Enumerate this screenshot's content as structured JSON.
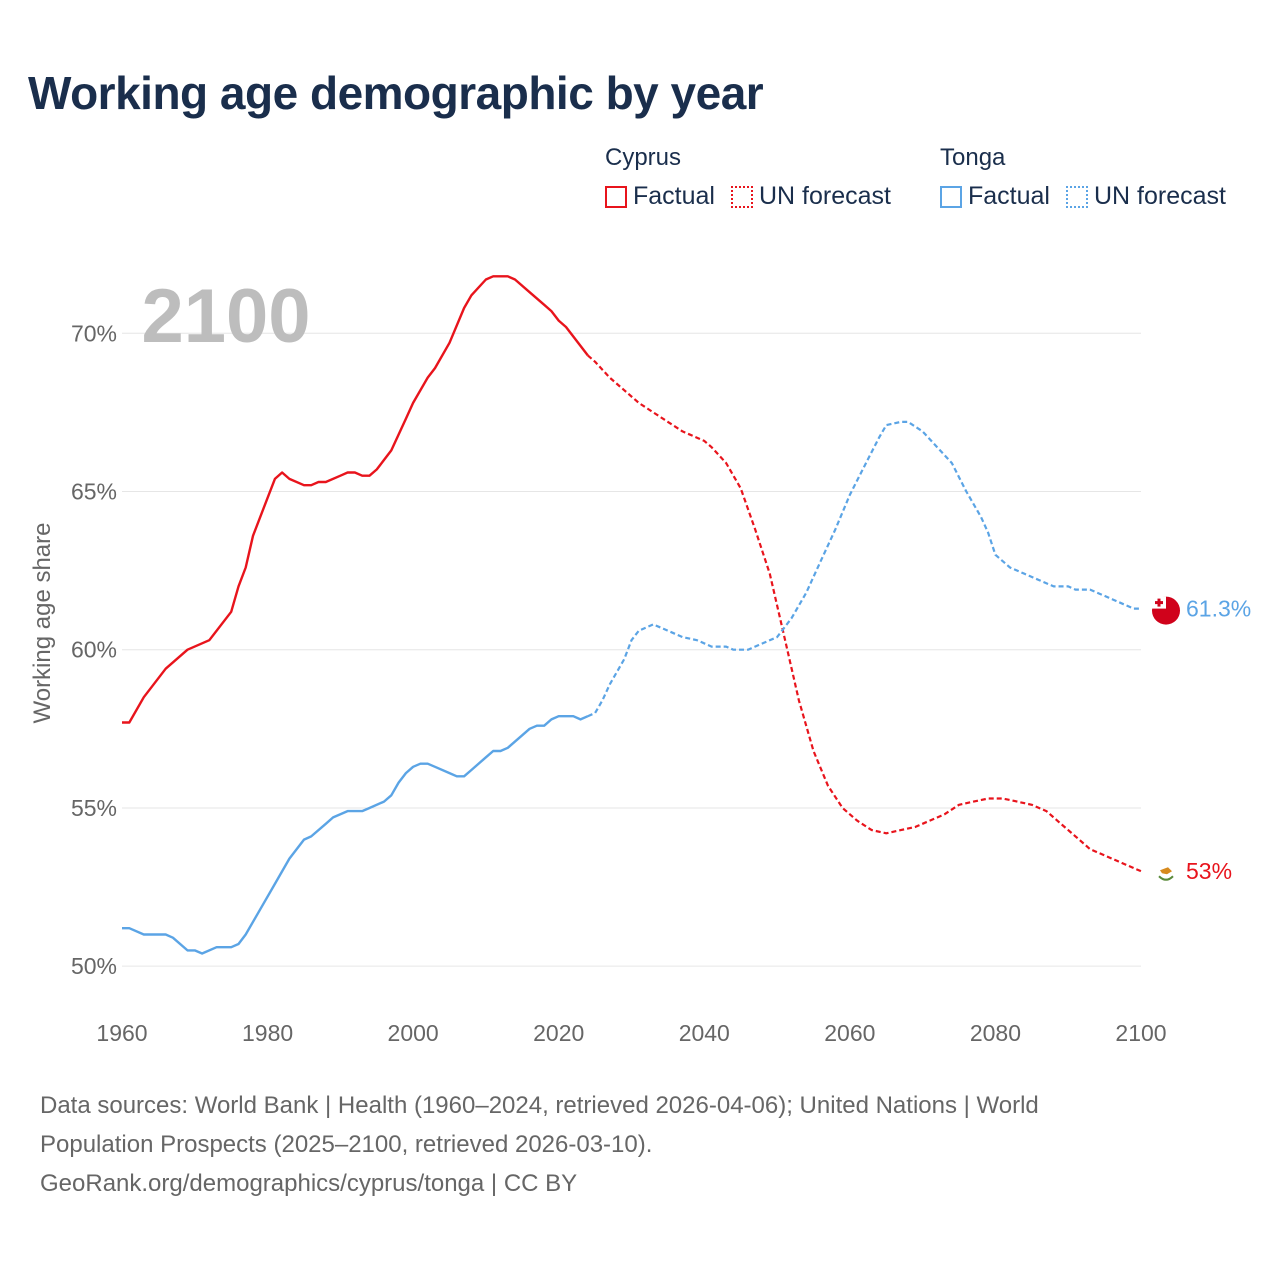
{
  "title": "Working age demographic by year",
  "legend": {
    "groups": [
      {
        "country": "Cyprus",
        "factual_label": "Factual",
        "forecast_label": "UN forecast",
        "color": "#e8141c"
      },
      {
        "country": "Tonga",
        "factual_label": "Factual",
        "forecast_label": "UN forecast",
        "color": "#5ba4e5"
      }
    ]
  },
  "source": {
    "line1": "Data sources: World Bank | Health (1960–2024, retrieved 2026-04-06); United Nations | World",
    "line2": "Population Prospects (2025–2100, retrieved 2026-03-10).",
    "line3": "GeoRank.org/demographics/cyprus/tonga | CC BY"
  },
  "chart_data": {
    "type": "line",
    "title": "Working age demographic by year",
    "year_overlay": "2100",
    "ylabel": "Working age share",
    "xlabel": "",
    "xlim": [
      1960,
      2100
    ],
    "ylim": [
      49.5,
      72
    ],
    "x_ticks": [
      "1960",
      "1980",
      "2000",
      "2020",
      "2040",
      "2060",
      "2080",
      "2100"
    ],
    "y_ticks": [
      {
        "value": 50,
        "label": "50%"
      },
      {
        "value": 55,
        "label": "55%"
      },
      {
        "value": 60,
        "label": "60%"
      },
      {
        "value": 65,
        "label": "65%"
      },
      {
        "value": 70,
        "label": "70%"
      }
    ],
    "factual_end_year": 2024,
    "series": [
      {
        "name": "Cyprus",
        "color": "#e8141c",
        "end_label": "53%",
        "flag": "cyprus-flag",
        "points": [
          [
            1960,
            57.7
          ],
          [
            1961,
            57.7
          ],
          [
            1963,
            58.5
          ],
          [
            1966,
            59.4
          ],
          [
            1969,
            60.0
          ],
          [
            1972,
            60.3
          ],
          [
            1975,
            61.2
          ],
          [
            1976,
            62.0
          ],
          [
            1977,
            62.6
          ],
          [
            1978,
            63.6
          ],
          [
            1980,
            64.8
          ],
          [
            1981,
            65.4
          ],
          [
            1982,
            65.6
          ],
          [
            1983,
            65.4
          ],
          [
            1985,
            65.2
          ],
          [
            1986,
            65.2
          ],
          [
            1987,
            65.3
          ],
          [
            1988,
            65.3
          ],
          [
            1990,
            65.5
          ],
          [
            1991,
            65.6
          ],
          [
            1992,
            65.6
          ],
          [
            1993,
            65.5
          ],
          [
            1994,
            65.5
          ],
          [
            1995,
            65.7
          ],
          [
            1997,
            66.3
          ],
          [
            1999,
            67.3
          ],
          [
            2000,
            67.8
          ],
          [
            2002,
            68.6
          ],
          [
            2003,
            68.9
          ],
          [
            2005,
            69.7
          ],
          [
            2007,
            70.8
          ],
          [
            2008,
            71.2
          ],
          [
            2010,
            71.7
          ],
          [
            2011,
            71.8
          ],
          [
            2013,
            71.8
          ],
          [
            2014,
            71.7
          ],
          [
            2016,
            71.3
          ],
          [
            2018,
            70.9
          ],
          [
            2019,
            70.7
          ],
          [
            2020,
            70.4
          ],
          [
            2021,
            70.2
          ],
          [
            2023,
            69.6
          ],
          [
            2024,
            69.3
          ],
          [
            2025,
            69.1
          ],
          [
            2027,
            68.6
          ],
          [
            2029,
            68.2
          ],
          [
            2031,
            67.8
          ],
          [
            2033,
            67.5
          ],
          [
            2035,
            67.2
          ],
          [
            2037,
            66.9
          ],
          [
            2039,
            66.7
          ],
          [
            2040,
            66.6
          ],
          [
            2041,
            66.4
          ],
          [
            2043,
            65.9
          ],
          [
            2045,
            65.1
          ],
          [
            2047,
            63.8
          ],
          [
            2049,
            62.4
          ],
          [
            2051,
            60.4
          ],
          [
            2053,
            58.4
          ],
          [
            2055,
            56.8
          ],
          [
            2057,
            55.7
          ],
          [
            2059,
            55.0
          ],
          [
            2061,
            54.6
          ],
          [
            2063,
            54.3
          ],
          [
            2065,
            54.2
          ],
          [
            2067,
            54.3
          ],
          [
            2069,
            54.4
          ],
          [
            2071,
            54.6
          ],
          [
            2073,
            54.8
          ],
          [
            2075,
            55.1
          ],
          [
            2077,
            55.2
          ],
          [
            2079,
            55.3
          ],
          [
            2081,
            55.3
          ],
          [
            2083,
            55.2
          ],
          [
            2085,
            55.1
          ],
          [
            2087,
            54.9
          ],
          [
            2089,
            54.5
          ],
          [
            2091,
            54.1
          ],
          [
            2093,
            53.7
          ],
          [
            2095,
            53.5
          ],
          [
            2097,
            53.3
          ],
          [
            2099,
            53.1
          ],
          [
            2100,
            53.0
          ]
        ]
      },
      {
        "name": "Tonga",
        "color": "#5ba4e5",
        "end_label": "61.3%",
        "flag": "tonga-flag",
        "points": [
          [
            1960,
            51.2
          ],
          [
            1961,
            51.2
          ],
          [
            1963,
            51.0
          ],
          [
            1966,
            51.0
          ],
          [
            1967,
            50.9
          ],
          [
            1969,
            50.5
          ],
          [
            1970,
            50.5
          ],
          [
            1971,
            50.4
          ],
          [
            1973,
            50.6
          ],
          [
            1975,
            50.6
          ],
          [
            1976,
            50.7
          ],
          [
            1977,
            51.0
          ],
          [
            1979,
            51.8
          ],
          [
            1981,
            52.6
          ],
          [
            1983,
            53.4
          ],
          [
            1985,
            54.0
          ],
          [
            1986,
            54.1
          ],
          [
            1988,
            54.5
          ],
          [
            1989,
            54.7
          ],
          [
            1991,
            54.9
          ],
          [
            1993,
            54.9
          ],
          [
            1994,
            55.0
          ],
          [
            1996,
            55.2
          ],
          [
            1997,
            55.4
          ],
          [
            1998,
            55.8
          ],
          [
            1999,
            56.1
          ],
          [
            2000,
            56.3
          ],
          [
            2001,
            56.4
          ],
          [
            2002,
            56.4
          ],
          [
            2003,
            56.3
          ],
          [
            2005,
            56.1
          ],
          [
            2006,
            56.0
          ],
          [
            2007,
            56.0
          ],
          [
            2008,
            56.2
          ],
          [
            2010,
            56.6
          ],
          [
            2011,
            56.8
          ],
          [
            2012,
            56.8
          ],
          [
            2013,
            56.9
          ],
          [
            2015,
            57.3
          ],
          [
            2016,
            57.5
          ],
          [
            2017,
            57.6
          ],
          [
            2018,
            57.6
          ],
          [
            2019,
            57.8
          ],
          [
            2020,
            57.9
          ],
          [
            2022,
            57.9
          ],
          [
            2023,
            57.8
          ],
          [
            2024,
            57.9
          ],
          [
            2025,
            58.0
          ],
          [
            2026,
            58.4
          ],
          [
            2027,
            58.9
          ],
          [
            2029,
            59.7
          ],
          [
            2030,
            60.3
          ],
          [
            2031,
            60.6
          ],
          [
            2033,
            60.8
          ],
          [
            2035,
            60.6
          ],
          [
            2037,
            60.4
          ],
          [
            2039,
            60.3
          ],
          [
            2041,
            60.1
          ],
          [
            2043,
            60.1
          ],
          [
            2044,
            60.0
          ],
          [
            2046,
            60.0
          ],
          [
            2048,
            60.2
          ],
          [
            2050,
            60.4
          ],
          [
            2052,
            61.0
          ],
          [
            2054,
            61.8
          ],
          [
            2056,
            62.8
          ],
          [
            2058,
            63.8
          ],
          [
            2060,
            64.9
          ],
          [
            2062,
            65.8
          ],
          [
            2064,
            66.7
          ],
          [
            2065,
            67.1
          ],
          [
            2067,
            67.2
          ],
          [
            2068,
            67.2
          ],
          [
            2070,
            66.9
          ],
          [
            2072,
            66.4
          ],
          [
            2074,
            65.9
          ],
          [
            2076,
            65.0
          ],
          [
            2078,
            64.2
          ],
          [
            2079,
            63.7
          ],
          [
            2080,
            63.0
          ],
          [
            2082,
            62.6
          ],
          [
            2084,
            62.4
          ],
          [
            2086,
            62.2
          ],
          [
            2088,
            62.0
          ],
          [
            2090,
            62.0
          ],
          [
            2091,
            61.9
          ],
          [
            2093,
            61.9
          ],
          [
            2095,
            61.7
          ],
          [
            2097,
            61.5
          ],
          [
            2099,
            61.3
          ],
          [
            2100,
            61.3
          ]
        ]
      }
    ]
  }
}
